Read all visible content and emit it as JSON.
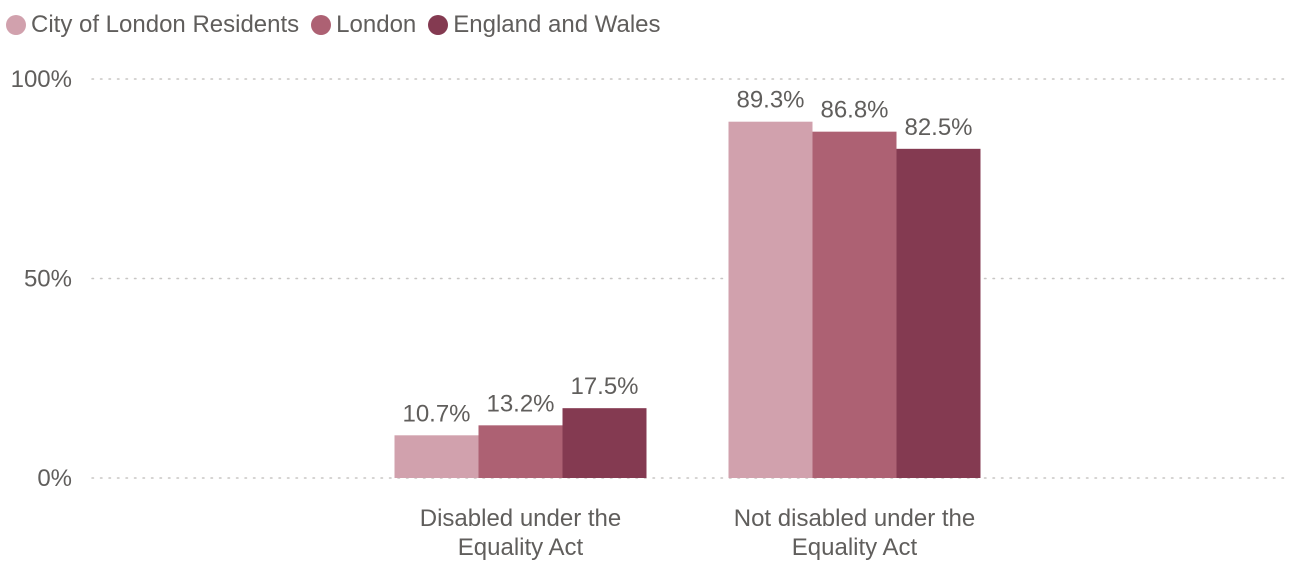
{
  "colors": {
    "City of London Residents": "#d1a1ad",
    "London": "#ad6173",
    "England and Wales": "#843a51",
    "gridline": "#c8c6c4",
    "text": "#605e5c"
  },
  "legend": {
    "items": [
      {
        "label": "City of London Residents",
        "color": "#d1a1ad"
      },
      {
        "label": "London",
        "color": "#ad6173"
      },
      {
        "label": "England and Wales",
        "color": "#843a51"
      }
    ]
  },
  "chart_data": {
    "type": "bar",
    "title": "",
    "xlabel": "",
    "ylabel": "",
    "ylim": [
      0,
      100
    ],
    "y_ticks": [
      "0%",
      "50%",
      "100%"
    ],
    "y_tick_values": [
      0,
      50,
      100
    ],
    "grid": true,
    "legend_position": "top-left",
    "categories": [
      [
        "Disabled under the",
        "Equality Act"
      ],
      [
        "Not disabled under the",
        "Equality Act"
      ]
    ],
    "series": [
      {
        "name": "City of London Residents",
        "color": "#d1a1ad",
        "values": [
          10.7,
          89.3
        ],
        "labels": [
          "10.7%",
          "89.3%"
        ]
      },
      {
        "name": "London",
        "color": "#ad6173",
        "values": [
          13.2,
          86.8
        ],
        "labels": [
          "13.2%",
          "86.8%"
        ]
      },
      {
        "name": "England and Wales",
        "color": "#843a51",
        "values": [
          17.5,
          82.5
        ],
        "labels": [
          "17.5%",
          "82.5%"
        ]
      }
    ]
  }
}
